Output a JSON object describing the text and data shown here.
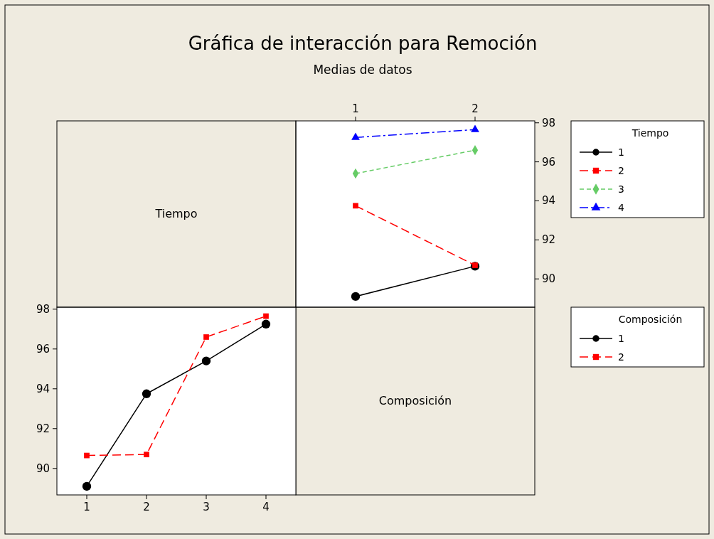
{
  "chart_data": [
    {
      "type": "line",
      "title": "Gráfica de interacción para Remoción",
      "subtitle": "Medias de datos",
      "xlabel": "Composición",
      "legend_title": "Tiempo",
      "legend": "right",
      "x": [
        1,
        2
      ],
      "xlim": [
        0.5,
        2.5
      ],
      "xticks": [
        1,
        2
      ],
      "ylim": [
        88.55,
        98.1
      ],
      "yticks": [
        90,
        92,
        94,
        96,
        98
      ],
      "grid": false,
      "series": [
        {
          "name": "1",
          "color": "#000000",
          "values": [
            89.1,
            90.65
          ],
          "marker": "circle",
          "line_style": "solid"
        },
        {
          "name": "2",
          "color": "#ff0000",
          "values": [
            93.75,
            90.7
          ],
          "marker": "square",
          "line_style": "dashed"
        },
        {
          "name": "3",
          "color": "#66cc66",
          "values": [
            95.4,
            96.6
          ],
          "marker": "diamond",
          "line_style": "dashed"
        },
        {
          "name": "4",
          "color": "#0000ff",
          "values": [
            97.25,
            97.65
          ],
          "marker": "triangle",
          "line_style": "dashed"
        }
      ]
    },
    {
      "type": "line",
      "xlabel": "Tiempo",
      "legend_title": "Composición",
      "legend": "right",
      "x": [
        1,
        2,
        3,
        4
      ],
      "xlim": [
        0.5,
        4.5
      ],
      "xticks": [
        1,
        2,
        3,
        4
      ],
      "ylim": [
        88.67,
        98.1
      ],
      "yticks": [
        90,
        92,
        94,
        96,
        98
      ],
      "grid": false,
      "series": [
        {
          "name": "1",
          "color": "#000000",
          "values": [
            89.1,
            93.75,
            95.4,
            97.25
          ],
          "marker": "circle",
          "line_style": "solid"
        },
        {
          "name": "2",
          "color": "#ff0000",
          "values": [
            90.65,
            90.7,
            96.6,
            97.65
          ],
          "marker": "square",
          "line_style": "dashed"
        }
      ]
    }
  ]
}
